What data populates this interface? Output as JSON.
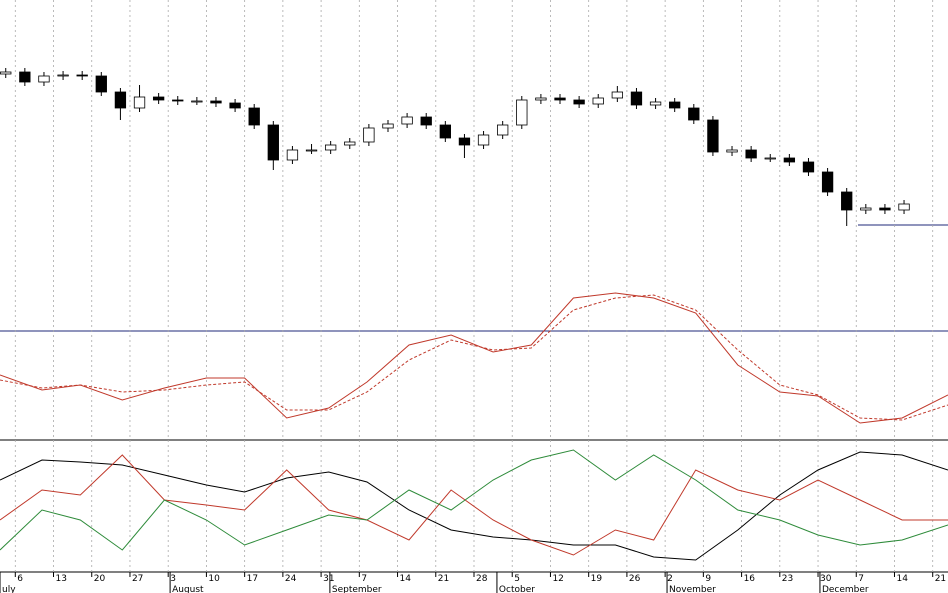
{
  "chart_data": [
    {
      "type": "candlestick",
      "xlim": [
        -0.4,
        24.4
      ],
      "ylim": [
        0,
        330
      ],
      "x": [
        -0.25,
        0.25,
        0.75,
        1.25,
        1.75,
        2.25,
        2.75,
        3.25,
        3.75,
        4.25,
        4.75,
        5.25,
        5.75,
        6.25,
        6.75,
        7.25,
        7.75,
        8.25,
        8.75,
        9.25,
        9.75,
        10.25,
        10.75,
        11.25,
        11.75,
        12.25,
        12.75,
        13.25,
        13.75,
        14.25,
        14.75,
        15.25,
        15.75,
        16.25,
        16.75,
        17.25,
        17.75,
        18.25,
        18.75,
        19.25,
        19.75,
        20.25,
        20.75,
        21.25,
        21.75,
        22.25,
        22.75,
        23.25
      ],
      "open": [
        256,
        258,
        248,
        254,
        255,
        254,
        238,
        222,
        233,
        230,
        229,
        229,
        227,
        222,
        205,
        170,
        180,
        180,
        185,
        188,
        202,
        206,
        213,
        205,
        192,
        185,
        195,
        205,
        230,
        232,
        230,
        226,
        232,
        238,
        225,
        228,
        222,
        210,
        178,
        180,
        172,
        172,
        168,
        158,
        138,
        120,
        122,
        120
      ],
      "high": [
        262,
        262,
        258,
        259,
        259,
        258,
        242,
        245,
        237,
        234,
        233,
        233,
        231,
        226,
        209,
        184,
        186,
        189,
        192,
        206,
        210,
        217,
        217,
        209,
        196,
        199,
        209,
        234,
        236,
        236,
        234,
        236,
        244,
        242,
        232,
        232,
        226,
        214,
        184,
        184,
        176,
        176,
        172,
        162,
        142,
        126,
        126,
        130
      ],
      "low": [
        252,
        244,
        244,
        250,
        250,
        234,
        210,
        218,
        226,
        225,
        225,
        223,
        218,
        201,
        160,
        166,
        176,
        176,
        181,
        184,
        198,
        202,
        201,
        188,
        172,
        181,
        191,
        201,
        226,
        226,
        222,
        222,
        228,
        221,
        221,
        218,
        206,
        174,
        174,
        168,
        168,
        164,
        154,
        134,
        104,
        116,
        116,
        116
      ],
      "close": [
        258,
        248,
        254,
        255,
        254,
        238,
        222,
        233,
        230,
        229,
        229,
        227,
        222,
        205,
        170,
        180,
        180,
        185,
        188,
        202,
        206,
        213,
        205,
        192,
        185,
        195,
        205,
        230,
        232,
        230,
        226,
        232,
        238,
        225,
        228,
        222,
        210,
        178,
        180,
        172,
        172,
        168,
        158,
        138,
        120,
        122,
        120,
        126
      ],
      "up_color": "#ffffff",
      "down_color": "#000000",
      "xticks": [
        {
          "value": 0,
          "label": "6"
        },
        {
          "value": 1,
          "label": "13"
        },
        {
          "value": 2,
          "label": "20"
        },
        {
          "value": 3,
          "label": "27"
        },
        {
          "value": 4,
          "label": "3"
        },
        {
          "value": 5,
          "label": "10"
        },
        {
          "value": 6,
          "label": "17"
        },
        {
          "value": 7,
          "label": "24"
        },
        {
          "value": 8,
          "label": "31"
        },
        {
          "value": 9,
          "label": "7"
        },
        {
          "value": 10,
          "label": "14"
        },
        {
          "value": 11,
          "label": "21"
        },
        {
          "value": 12,
          "label": "28"
        },
        {
          "value": 13,
          "label": "5"
        },
        {
          "value": 14,
          "label": "12"
        },
        {
          "value": 15,
          "label": "19"
        },
        {
          "value": 16,
          "label": "26"
        },
        {
          "value": 17,
          "label": "2"
        },
        {
          "value": 18,
          "label": "9"
        },
        {
          "value": 19,
          "label": "16"
        },
        {
          "value": 20,
          "label": "23"
        },
        {
          "value": 21,
          "label": "30"
        },
        {
          "value": 22,
          "label": "7"
        },
        {
          "value": 23,
          "label": "14"
        },
        {
          "value": 24,
          "label": "21"
        }
      ],
      "month_ticks": [
        {
          "value": -0.4,
          "label": "uly"
        },
        {
          "value": 4.05,
          "label": "August"
        },
        {
          "value": 8.23,
          "label": "September"
        },
        {
          "value": 12.6,
          "label": "October"
        },
        {
          "value": 17.05,
          "label": "November"
        },
        {
          "value": 21.05,
          "label": "December"
        }
      ],
      "grid": true
    },
    {
      "type": "line",
      "xlim": [
        -0.4,
        24.4
      ],
      "ylim": [
        0,
        160
      ],
      "x": [
        -0.4,
        0.7,
        1.7,
        2.8,
        3.9,
        5,
        6,
        7.1,
        8.2,
        9.2,
        10.3,
        11.4,
        12.5,
        13.5,
        14.6,
        15.7,
        16.7,
        17.8,
        18.9,
        20,
        21,
        22.1,
        23.2,
        24.4
      ],
      "series": [
        {
          "color": "#c0392b",
          "style": "solid",
          "values": [
            65,
            50,
            55,
            40,
            52,
            62,
            62,
            22,
            32,
            58,
            95,
            105,
            88,
            95,
            142,
            147,
            142,
            127,
            75,
            48,
            44,
            17,
            22,
            45
          ]
        },
        {
          "color": "#c0392b",
          "style": "dashed",
          "values": [
            60,
            52,
            55,
            48,
            50,
            55,
            58,
            30,
            30,
            48,
            80,
            100,
            90,
            92,
            130,
            142,
            145,
            130,
            90,
            55,
            45,
            22,
            20,
            35
          ]
        }
      ]
    },
    {
      "type": "line",
      "xlim": [
        -0.4,
        24.4
      ],
      "ylim": [
        0,
        131
      ],
      "x": [
        -0.4,
        0.7,
        1.7,
        2.8,
        3.9,
        5,
        6,
        7.1,
        8.2,
        9.2,
        10.3,
        11.4,
        12.5,
        13.5,
        14.6,
        15.7,
        16.7,
        17.8,
        18.9,
        20,
        21,
        22.1,
        23.2,
        24.4
      ],
      "series": [
        {
          "color": "#000000",
          "style": "solid",
          "values": [
            92,
            112,
            110,
            107,
            97,
            87,
            80,
            94,
            100,
            90,
            62,
            42,
            35,
            32,
            27,
            27,
            15,
            12,
            42,
            77,
            102,
            120,
            117,
            102
          ]
        },
        {
          "color": "#c0392b",
          "style": "solid",
          "values": [
            52,
            82,
            77,
            117,
            72,
            67,
            62,
            102,
            62,
            52,
            32,
            82,
            52,
            32,
            17,
            42,
            32,
            102,
            82,
            72,
            92,
            72,
            52,
            52
          ]
        },
        {
          "color": "#2e8b3a",
          "style": "solid",
          "values": [
            22,
            62,
            52,
            22,
            72,
            52,
            27,
            42,
            57,
            52,
            82,
            62,
            92,
            112,
            122,
            92,
            117,
            92,
            62,
            52,
            37,
            27,
            32,
            47
          ]
        }
      ]
    }
  ]
}
